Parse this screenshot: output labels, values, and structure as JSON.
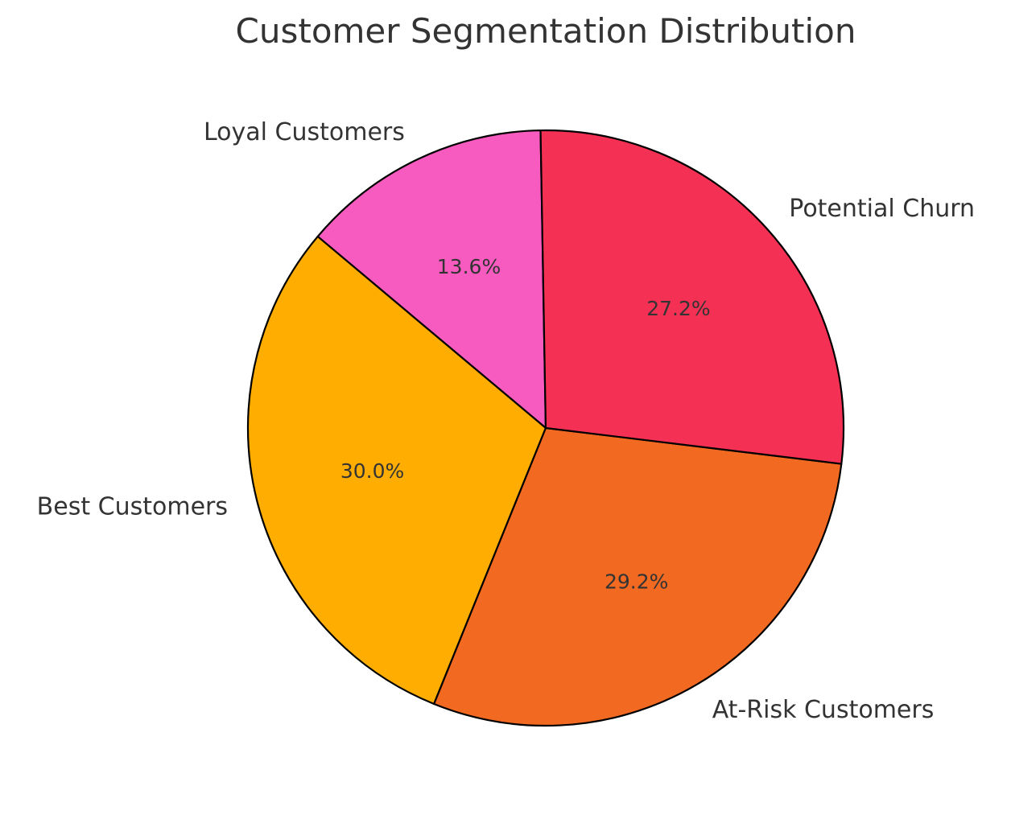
{
  "chart_data": {
    "type": "pie",
    "title": "Customer Segmentation Distribution",
    "start_angle_deg": 91,
    "direction": "counterclockwise",
    "edge_color": "#000000",
    "slices": [
      {
        "label": "Loyal Customers",
        "value": 13.6,
        "pct_label": "13.6%",
        "color": "#f75bc0"
      },
      {
        "label": "Best Customers",
        "value": 30.0,
        "pct_label": "30.0%",
        "color": "#ffad00"
      },
      {
        "label": "At-Risk Customers",
        "value": 29.2,
        "pct_label": "29.2%",
        "color": "#f26a21"
      },
      {
        "label": "Potential Churn",
        "value": 27.2,
        "pct_label": "27.2%",
        "color": "#f43154"
      }
    ]
  }
}
